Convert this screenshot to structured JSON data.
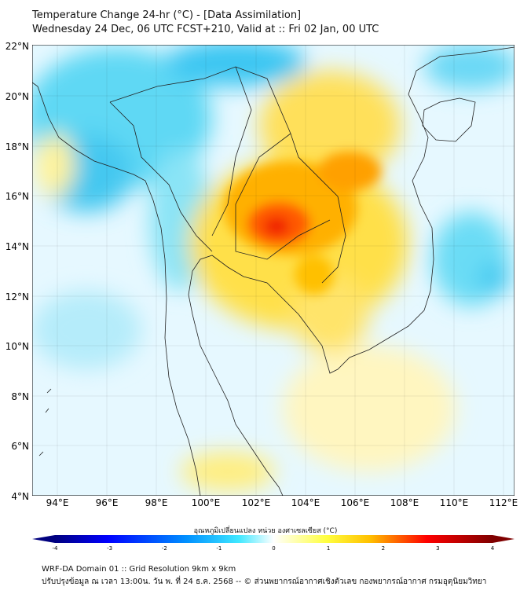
{
  "header": {
    "title": "Temperature Change 24-hr (°C) - [Data Assimilation]",
    "subtitle": "Wednesday 24 Dec, 06 UTC FCST+210, Valid at :: Fri 02 Jan, 00 UTC"
  },
  "map": {
    "lat_ticks": [
      "22°N",
      "20°N",
      "18°N",
      "16°N",
      "14°N",
      "12°N",
      "10°N",
      "8°N",
      "6°N",
      "4°N"
    ],
    "lon_ticks": [
      "94°E",
      "96°E",
      "98°E",
      "100°E",
      "102°E",
      "104°E",
      "106°E",
      "108°E",
      "110°E",
      "112°E"
    ],
    "lat_range": [
      4,
      22
    ],
    "lon_range": [
      93,
      112.4
    ]
  },
  "colorbar": {
    "label": "อุณหภูมิเปลี่ยนแปลง หน่วย องศาเซลเซียส (°C)",
    "ticks": [
      "-4",
      "-3",
      "-2",
      "-1",
      "0",
      "1",
      "2",
      "3",
      "4"
    ],
    "min": -4,
    "max": 4,
    "colors": [
      "#00007f",
      "#0000ff",
      "#0080ff",
      "#40e0ff",
      "#ffffff",
      "#ffff40",
      "#ffa000",
      "#ff0000",
      "#7f0000"
    ]
  },
  "footer": {
    "line1": "WRF-DA Domain 01 :: Grid Resolution 9km x 9km",
    "line2": "ปรับปรุงข้อมูล ณ เวลา 13:00น. วัน พ. ที่ 24 ธ.ค. 2568 -- © ส่วนพยากรณ์อากาศเชิงตัวเลข กองพยากรณ์อากาศ กรมอุตุนิยมวิทยา"
  }
}
